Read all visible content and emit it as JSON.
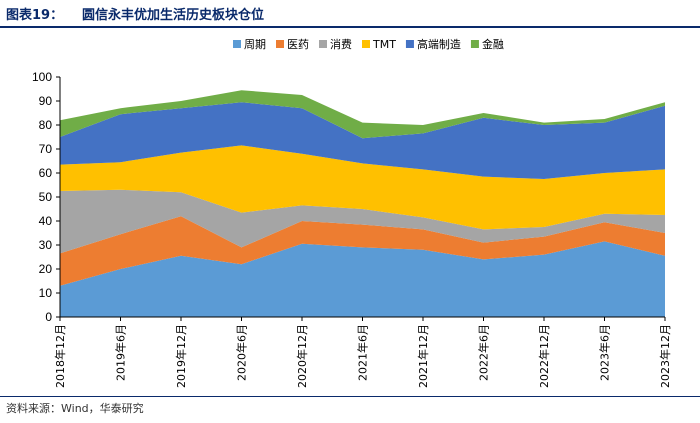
{
  "header": {
    "figure_label": "图表19：",
    "title": "圆信永丰优加生活历史板块仓位"
  },
  "footer": {
    "source": "资料来源：Wind，华泰研究"
  },
  "chart_data": {
    "type": "area",
    "stacked": true,
    "title": "圆信永丰优加生活历史板块仓位",
    "xlabel": "",
    "ylabel": "",
    "ylim": [
      0,
      100
    ],
    "yticks": [
      0,
      10,
      20,
      30,
      40,
      50,
      60,
      70,
      80,
      90,
      100
    ],
    "categories": [
      "2018年12月",
      "2019年6月",
      "2019年12月",
      "2020年6月",
      "2020年12月",
      "2021年6月",
      "2021年12月",
      "2022年6月",
      "2022年12月",
      "2023年6月",
      "2023年12月"
    ],
    "legend_position": "top-right",
    "series": [
      {
        "name": "周期",
        "color": "#5b9bd5",
        "values": [
          13,
          20,
          25.5,
          22,
          30.5,
          29,
          28,
          24,
          26,
          31.5,
          25.5
        ]
      },
      {
        "name": "医药",
        "color": "#ed7d31",
        "values": [
          13.5,
          14.5,
          16.5,
          7,
          9.5,
          9.5,
          8.5,
          7,
          7.5,
          8,
          9.5
        ]
      },
      {
        "name": "消费",
        "color": "#a5a5a5",
        "values": [
          26,
          18.5,
          10,
          14.5,
          6.5,
          6.5,
          5,
          5.5,
          4,
          3.5,
          7.5
        ]
      },
      {
        "name": "TMT",
        "color": "#ffc000",
        "values": [
          11,
          11.5,
          16.5,
          28,
          21.5,
          19,
          20,
          22,
          20,
          17,
          19
        ]
      },
      {
        "name": "高端制造",
        "color": "#4472c4",
        "values": [
          11.5,
          20,
          18.5,
          18,
          19,
          10.5,
          15,
          24.5,
          22.5,
          21,
          26.5
        ]
      },
      {
        "name": "金融",
        "color": "#70ad47",
        "values": [
          7,
          2.5,
          3,
          5,
          5.5,
          6.5,
          3.5,
          2,
          1,
          1.5,
          1.5
        ]
      }
    ]
  }
}
